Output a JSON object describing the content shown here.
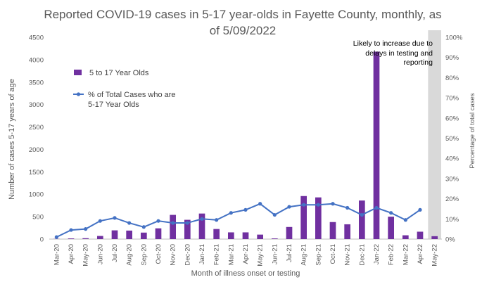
{
  "chart_data": {
    "type": "bar+line",
    "title_lines": [
      "Reported COVID-19 cases in 5-17 year-olds in Fayette County, monthly, as",
      "of 5/09/2022"
    ],
    "xlabel": "Month of illness onset or testing",
    "ylabel": "Number of cases 5-17 years of age",
    "y2label": "Percentage of total cases",
    "categories": [
      "Mar-20",
      "Apr-20",
      "May-20",
      "Jun-20",
      "Jul-20",
      "Aug-20",
      "Sep-20",
      "Oct-20",
      "Nov-20",
      "Dec-20",
      "Jan-21",
      "Feb-21",
      "Mar-21",
      "Apr-21",
      "May-21",
      "Jun-21",
      "Jul-21",
      "Aug-21",
      "Sep-21",
      "Oct-21",
      "Nov-21",
      "Dec-21",
      "Jan-22",
      "Feb-22",
      "Mar-22",
      "Apr-22",
      "May-22"
    ],
    "ylim": [
      0,
      4500
    ],
    "yticks": [
      "0",
      "500",
      "1000",
      "1500",
      "2000",
      "2500",
      "3000",
      "3500",
      "4000",
      "4500"
    ],
    "y2lim": [
      0,
      100
    ],
    "y2ticks": [
      "0%",
      "10%",
      "20%",
      "30%",
      "40%",
      "50%",
      "60%",
      "70%",
      "80%",
      "90%",
      "100%"
    ],
    "series": [
      {
        "name": "5 to 17 Year Olds",
        "type": "bar",
        "color": "#7030A0",
        "values": [
          5,
          15,
          20,
          70,
          195,
          190,
          145,
          240,
          540,
          430,
          570,
          225,
          150,
          150,
          100,
          15,
          270,
          960,
          930,
          380,
          330,
          860,
          4180,
          500,
          85,
          165,
          65
        ]
      },
      {
        "name": "% of Total Cases who are 5-17 Year Olds",
        "type": "line",
        "axis": "secondary",
        "color": "#4472C4",
        "values": [
          1,
          4.5,
          5,
          9,
          10.5,
          8,
          6,
          9,
          8,
          8,
          10,
          9.5,
          13,
          14.5,
          17.5,
          12,
          16,
          17,
          17,
          17.5,
          15.5,
          12,
          15.5,
          13,
          9.5,
          14.5,
          null
        ]
      }
    ],
    "annotation": {
      "lines": [
        "Likely to increase due to",
        "delays in testing and",
        "reporting"
      ],
      "shaded_category": "May-22",
      "shade_color": "#D9D9D9"
    },
    "legend_position": "left"
  }
}
